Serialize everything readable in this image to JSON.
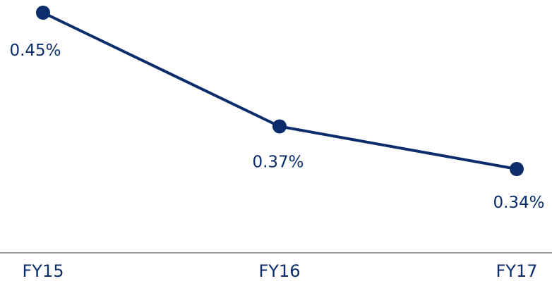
{
  "chart_data": {
    "type": "line",
    "categories": [
      "FY15",
      "FY16",
      "FY17"
    ],
    "series": [
      {
        "values": [
          0.45,
          0.37,
          0.34
        ],
        "labels": [
          "0.45%",
          "0.37%",
          "0.34%"
        ]
      }
    ],
    "ylim": [
      0.31,
      0.46
    ],
    "grid": false,
    "legend": "none",
    "colors": {
      "line": "#0b2d6b",
      "axis": "#7a7a7a",
      "text": "#0b2d6b"
    }
  }
}
